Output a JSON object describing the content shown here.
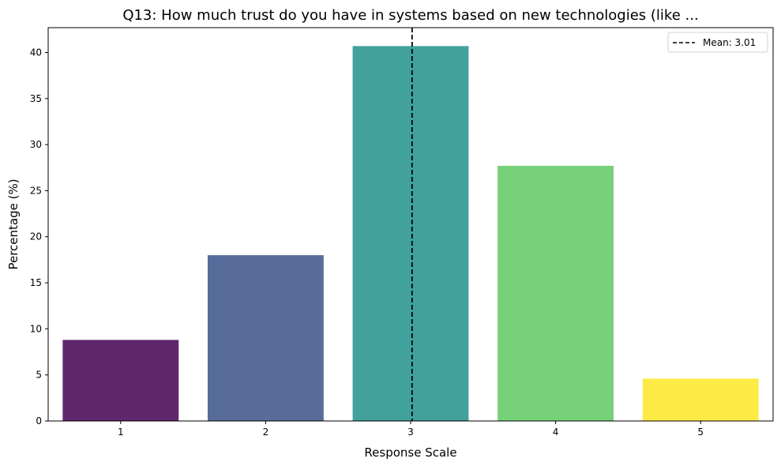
{
  "chart_data": {
    "type": "bar",
    "title": "Q13: How much trust do you have in systems based on new technologies (like ...",
    "xlabel": "Response Scale",
    "ylabel": "Percentage (%)",
    "categories": [
      "1",
      "2",
      "3",
      "4",
      "5"
    ],
    "values": [
      8.8,
      18.0,
      40.7,
      27.7,
      4.6
    ],
    "colors": [
      "#440154",
      "#3b528b",
      "#21918c",
      "#5ec962",
      "#fde725"
    ],
    "bar_opacity": 0.85,
    "ylim": [
      0,
      42.7
    ],
    "yticks": [
      0,
      5,
      10,
      15,
      20,
      25,
      30,
      35,
      40
    ],
    "grid": false,
    "mean_line": {
      "value": 3.01,
      "label": "Mean: 3.01",
      "color": "#000000",
      "style": "dashed"
    },
    "legend": {
      "position": "top-right",
      "entries": [
        "Mean: 3.01"
      ]
    }
  }
}
